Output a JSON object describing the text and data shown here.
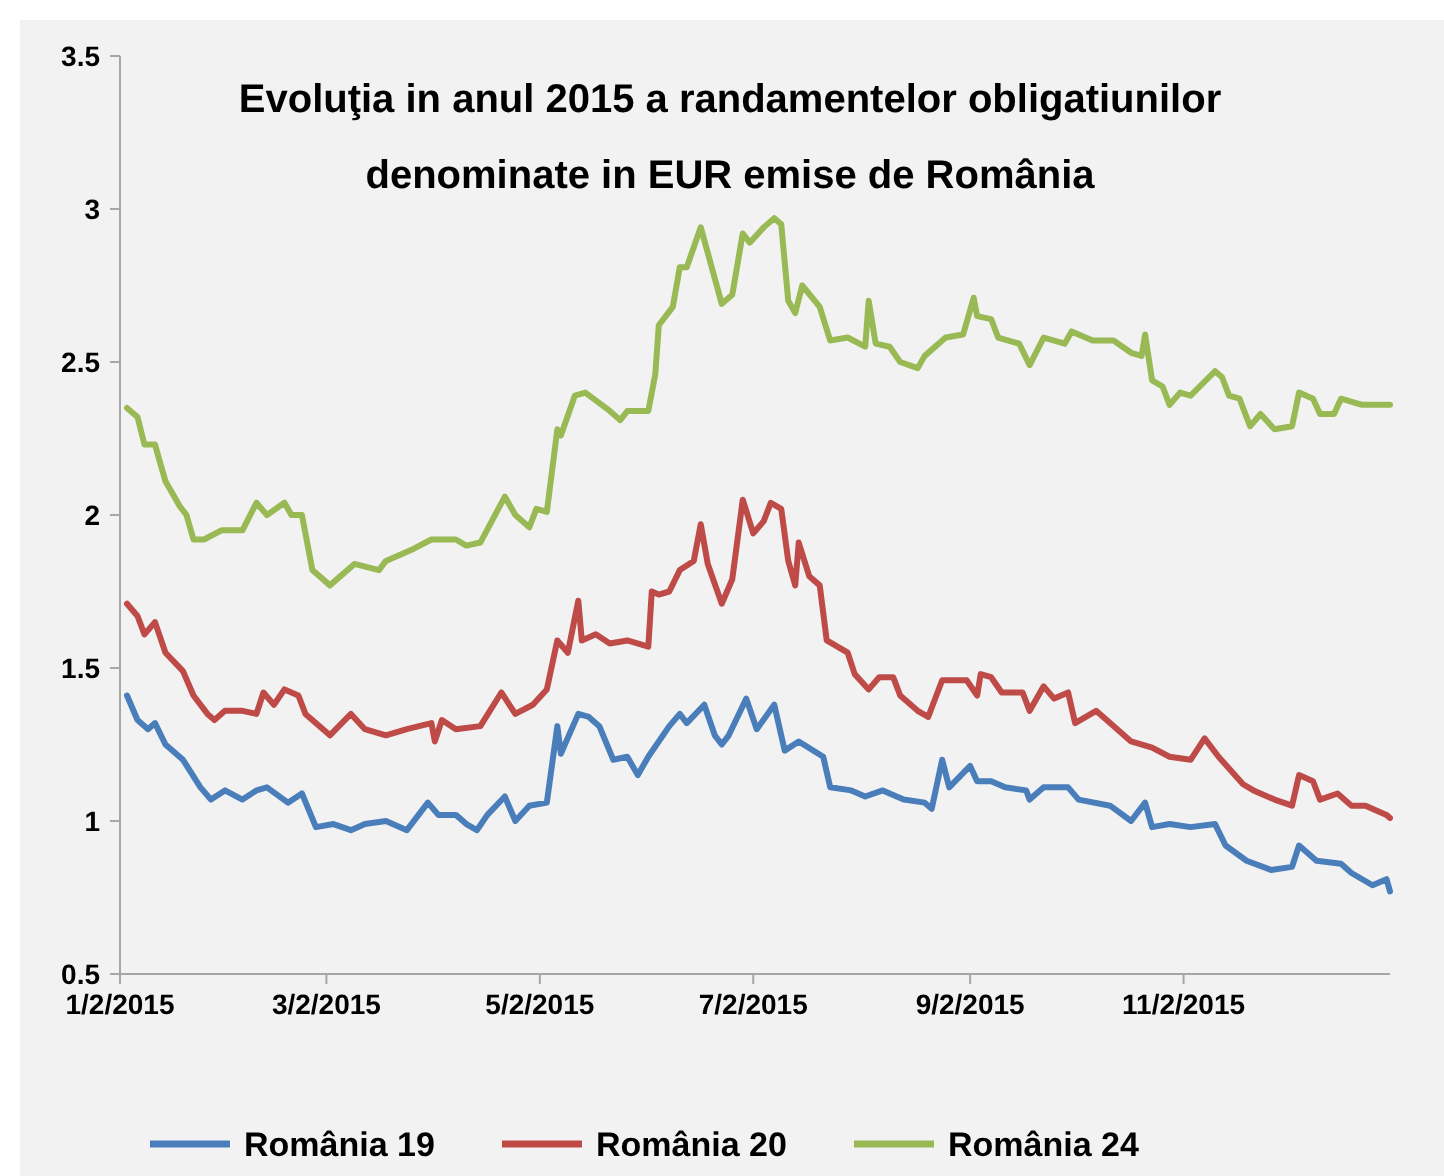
{
  "chart_data": {
    "type": "line",
    "title": "Evoluţia in anul 2015 a randamentelor obligatiunilor\ndenominate in EUR emise de România",
    "xlim": [
      "2015-01-02",
      "2015-12-31"
    ],
    "xticks": [
      {
        "value": "2015-01-02",
        "label": "1/2/2015"
      },
      {
        "value": "2015-03-02",
        "label": "3/2/2015"
      },
      {
        "value": "2015-05-02",
        "label": "5/2/2015"
      },
      {
        "value": "2015-07-02",
        "label": "7/2/2015"
      },
      {
        "value": "2015-09-02",
        "label": "9/2/2015"
      },
      {
        "value": "2015-11-02",
        "label": "11/2/2015"
      }
    ],
    "ylim": [
      0.5,
      3.5
    ],
    "yticks": [
      0.5,
      1,
      1.5,
      2,
      2.5,
      3,
      3.5
    ],
    "grid": false,
    "legend": "bottom",
    "series": [
      {
        "name": "România 19",
        "color": "#4a7ebb",
        "x": [
          "2015-01-04",
          "2015-01-07",
          "2015-01-10",
          "2015-01-12",
          "2015-01-15",
          "2015-01-20",
          "2015-01-25",
          "2015-01-28",
          "2015-02-01",
          "2015-02-06",
          "2015-02-10",
          "2015-02-13",
          "2015-02-19",
          "2015-02-23",
          "2015-02-27",
          "2015-03-04",
          "2015-03-09",
          "2015-03-13",
          "2015-03-19",
          "2015-03-25",
          "2015-03-31",
          "2015-04-03",
          "2015-04-08",
          "2015-04-11",
          "2015-04-14",
          "2015-04-17",
          "2015-04-22",
          "2015-04-25",
          "2015-04-29",
          "2015-05-04",
          "2015-05-07",
          "2015-05-08",
          "2015-05-13",
          "2015-05-16",
          "2015-05-19",
          "2015-05-23",
          "2015-05-27",
          "2015-05-30",
          "2015-06-02",
          "2015-06-08",
          "2015-06-11",
          "2015-06-13",
          "2015-06-18",
          "2015-06-21",
          "2015-06-23",
          "2015-06-25",
          "2015-06-30",
          "2015-07-03",
          "2015-07-08",
          "2015-07-11",
          "2015-07-15",
          "2015-07-22",
          "2015-07-24",
          "2015-07-30",
          "2015-08-03",
          "2015-08-08",
          "2015-08-14",
          "2015-08-20",
          "2015-08-22",
          "2015-08-25",
          "2015-08-27",
          "2015-09-02",
          "2015-09-04",
          "2015-09-08",
          "2015-09-12",
          "2015-09-18",
          "2015-09-19",
          "2015-09-23",
          "2015-09-30",
          "2015-10-03",
          "2015-10-12",
          "2015-10-18",
          "2015-10-22",
          "2015-10-24",
          "2015-10-29",
          "2015-11-04",
          "2015-11-11",
          "2015-11-14",
          "2015-11-20",
          "2015-11-27",
          "2015-12-03",
          "2015-12-05",
          "2015-12-10",
          "2015-12-17",
          "2015-12-20",
          "2015-12-26",
          "2015-12-30",
          "2015-12-31"
        ],
        "values": [
          1.41,
          1.33,
          1.3,
          1.32,
          1.25,
          1.2,
          1.11,
          1.07,
          1.1,
          1.07,
          1.1,
          1.11,
          1.06,
          1.09,
          0.98,
          0.99,
          0.97,
          0.99,
          1.0,
          0.97,
          1.06,
          1.02,
          1.02,
          0.99,
          0.97,
          1.02,
          1.08,
          1.0,
          1.05,
          1.06,
          1.31,
          1.22,
          1.35,
          1.34,
          1.31,
          1.2,
          1.21,
          1.15,
          1.21,
          1.31,
          1.35,
          1.32,
          1.38,
          1.28,
          1.25,
          1.28,
          1.4,
          1.3,
          1.38,
          1.23,
          1.26,
          1.21,
          1.11,
          1.1,
          1.08,
          1.1,
          1.07,
          1.06,
          1.04,
          1.2,
          1.11,
          1.18,
          1.13,
          1.13,
          1.11,
          1.1,
          1.07,
          1.11,
          1.11,
          1.07,
          1.05,
          1.0,
          1.06,
          0.98,
          0.99,
          0.98,
          0.99,
          0.92,
          0.87,
          0.84,
          0.85,
          0.92,
          0.87,
          0.86,
          0.83,
          0.79,
          0.81,
          0.77
        ]
      },
      {
        "name": "România 20",
        "color": "#be4b48",
        "x": [
          "2015-01-04",
          "2015-01-07",
          "2015-01-09",
          "2015-01-12",
          "2015-01-15",
          "2015-01-20",
          "2015-01-23",
          "2015-01-27",
          "2015-01-29",
          "2015-02-01",
          "2015-02-06",
          "2015-02-10",
          "2015-02-12",
          "2015-02-15",
          "2015-02-18",
          "2015-02-22",
          "2015-02-24",
          "2015-03-03",
          "2015-03-09",
          "2015-03-13",
          "2015-03-19",
          "2015-03-25",
          "2015-04-01",
          "2015-04-02",
          "2015-04-04",
          "2015-04-08",
          "2015-04-15",
          "2015-04-21",
          "2015-04-25",
          "2015-04-30",
          "2015-05-04",
          "2015-05-07",
          "2015-05-10",
          "2015-05-13",
          "2015-05-14",
          "2015-05-18",
          "2015-05-22",
          "2015-05-27",
          "2015-06-02",
          "2015-06-03",
          "2015-06-05",
          "2015-06-08",
          "2015-06-11",
          "2015-06-15",
          "2015-06-17",
          "2015-06-19",
          "2015-06-23",
          "2015-06-26",
          "2015-06-29",
          "2015-07-02",
          "2015-07-05",
          "2015-07-07",
          "2015-07-10",
          "2015-07-12",
          "2015-07-14",
          "2015-07-15",
          "2015-07-18",
          "2015-07-21",
          "2015-07-23",
          "2015-07-29",
          "2015-07-31",
          "2015-08-04",
          "2015-08-07",
          "2015-08-11",
          "2015-08-13",
          "2015-08-18",
          "2015-08-21",
          "2015-08-25",
          "2015-09-01",
          "2015-09-04",
          "2015-09-05",
          "2015-09-08",
          "2015-09-11",
          "2015-09-17",
          "2015-09-19",
          "2015-09-23",
          "2015-09-26",
          "2015-09-30",
          "2015-10-02",
          "2015-10-08",
          "2015-10-12",
          "2015-10-18",
          "2015-10-24",
          "2015-10-29",
          "2015-11-04",
          "2015-11-08",
          "2015-11-12",
          "2015-11-19",
          "2015-11-22",
          "2015-11-28",
          "2015-12-03",
          "2015-12-05",
          "2015-12-09",
          "2015-12-11",
          "2015-12-16",
          "2015-12-20",
          "2015-12-24",
          "2015-12-30",
          "2015-12-31"
        ],
        "values": [
          1.71,
          1.67,
          1.61,
          1.65,
          1.55,
          1.49,
          1.41,
          1.35,
          1.33,
          1.36,
          1.36,
          1.35,
          1.42,
          1.38,
          1.43,
          1.41,
          1.35,
          1.28,
          1.35,
          1.3,
          1.28,
          1.3,
          1.32,
          1.26,
          1.33,
          1.3,
          1.31,
          1.42,
          1.35,
          1.38,
          1.43,
          1.59,
          1.55,
          1.72,
          1.59,
          1.61,
          1.58,
          1.59,
          1.57,
          1.75,
          1.74,
          1.75,
          1.82,
          1.85,
          1.97,
          1.84,
          1.71,
          1.79,
          2.05,
          1.94,
          1.98,
          2.04,
          2.02,
          1.85,
          1.77,
          1.91,
          1.8,
          1.77,
          1.59,
          1.55,
          1.48,
          1.43,
          1.47,
          1.47,
          1.41,
          1.36,
          1.34,
          1.46,
          1.46,
          1.41,
          1.48,
          1.47,
          1.42,
          1.42,
          1.36,
          1.44,
          1.4,
          1.42,
          1.32,
          1.36,
          1.32,
          1.26,
          1.24,
          1.21,
          1.2,
          1.27,
          1.21,
          1.12,
          1.1,
          1.07,
          1.05,
          1.15,
          1.13,
          1.07,
          1.09,
          1.05,
          1.05,
          1.02,
          1.01
        ]
      },
      {
        "name": "România 24",
        "color": "#98b954",
        "x": [
          "2015-01-04",
          "2015-01-07",
          "2015-01-09",
          "2015-01-12",
          "2015-01-15",
          "2015-01-19",
          "2015-01-21",
          "2015-01-23",
          "2015-01-26",
          "2015-01-31",
          "2015-02-06",
          "2015-02-10",
          "2015-02-13",
          "2015-02-18",
          "2015-02-20",
          "2015-02-23",
          "2015-02-26",
          "2015-03-03",
          "2015-03-10",
          "2015-03-17",
          "2015-03-19",
          "2015-03-27",
          "2015-04-01",
          "2015-04-08",
          "2015-04-11",
          "2015-04-15",
          "2015-04-22",
          "2015-04-25",
          "2015-04-29",
          "2015-05-01",
          "2015-05-04",
          "2015-05-07",
          "2015-05-08",
          "2015-05-12",
          "2015-05-15",
          "2015-05-22",
          "2015-05-25",
          "2015-05-27",
          "2015-06-02",
          "2015-06-04",
          "2015-06-05",
          "2015-06-09",
          "2015-06-11",
          "2015-06-13",
          "2015-06-17",
          "2015-06-23",
          "2015-06-26",
          "2015-06-29",
          "2015-07-01",
          "2015-07-05",
          "2015-07-08",
          "2015-07-10",
          "2015-07-12",
          "2015-07-14",
          "2015-07-16",
          "2015-07-21",
          "2015-07-24",
          "2015-07-29",
          "2015-08-03",
          "2015-08-04",
          "2015-08-06",
          "2015-08-10",
          "2015-08-13",
          "2015-08-18",
          "2015-08-20",
          "2015-08-26",
          "2015-08-31",
          "2015-09-03",
          "2015-09-04",
          "2015-09-08",
          "2015-09-10",
          "2015-09-16",
          "2015-09-19",
          "2015-09-23",
          "2015-09-29",
          "2015-10-01",
          "2015-10-07",
          "2015-10-13",
          "2015-10-18",
          "2015-10-21",
          "2015-10-22",
          "2015-10-24",
          "2015-10-27",
          "2015-10-29",
          "2015-11-01",
          "2015-11-04",
          "2015-11-11",
          "2015-11-13",
          "2015-11-15",
          "2015-11-18",
          "2015-11-21",
          "2015-11-24",
          "2015-11-28",
          "2015-12-03",
          "2015-12-05",
          "2015-12-09",
          "2015-12-11",
          "2015-12-15",
          "2015-12-17",
          "2015-12-23",
          "2015-12-31"
        ],
        "values": [
          2.35,
          2.32,
          2.23,
          2.23,
          2.11,
          2.03,
          2.0,
          1.92,
          1.92,
          1.95,
          1.95,
          2.04,
          2.0,
          2.04,
          2.0,
          2.0,
          1.82,
          1.77,
          1.84,
          1.82,
          1.85,
          1.89,
          1.92,
          1.92,
          1.9,
          1.91,
          2.06,
          2.0,
          1.96,
          2.02,
          2.01,
          2.28,
          2.26,
          2.39,
          2.4,
          2.34,
          2.31,
          2.34,
          2.34,
          2.46,
          2.62,
          2.68,
          2.81,
          2.81,
          2.94,
          2.69,
          2.72,
          2.92,
          2.89,
          2.94,
          2.97,
          2.95,
          2.7,
          2.66,
          2.75,
          2.68,
          2.57,
          2.58,
          2.55,
          2.7,
          2.56,
          2.55,
          2.5,
          2.48,
          2.52,
          2.58,
          2.59,
          2.71,
          2.65,
          2.64,
          2.58,
          2.56,
          2.49,
          2.58,
          2.56,
          2.6,
          2.57,
          2.57,
          2.53,
          2.52,
          2.59,
          2.44,
          2.42,
          2.36,
          2.4,
          2.39,
          2.47,
          2.45,
          2.39,
          2.38,
          2.29,
          2.33,
          2.28,
          2.29,
          2.4,
          2.38,
          2.33,
          2.33,
          2.38,
          2.36,
          2.36
        ]
      }
    ]
  }
}
